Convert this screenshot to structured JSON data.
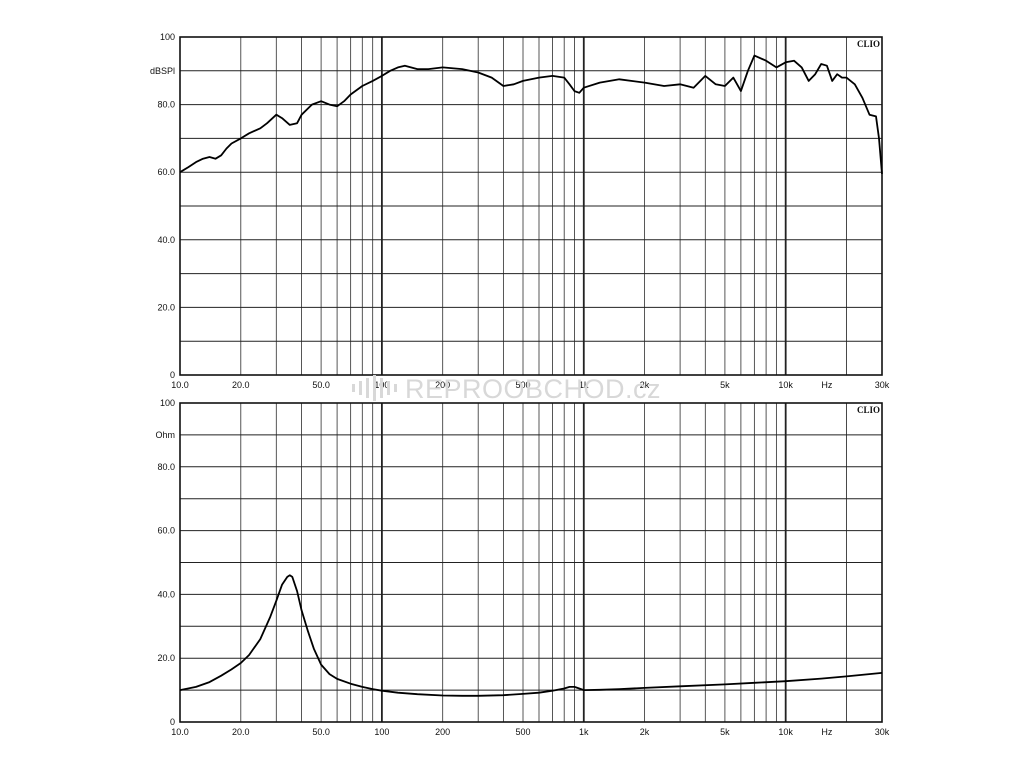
{
  "watermark": "REPROOBCHOD.cz",
  "colors": {
    "axis": "#111111",
    "grid_major": "#222222",
    "grid_minor": "#444444",
    "curve": "#000000",
    "watermark": "#d8d8d8"
  },
  "chart_data": [
    {
      "type": "line",
      "brand": "CLIO",
      "ylabel": "dBSPl",
      "xlabel": "Hz",
      "x_scale": "log",
      "xlim": [
        10,
        30000
      ],
      "ylim": [
        0,
        100
      ],
      "grid": true,
      "y_ticks": [
        {
          "value": 100,
          "label": "100"
        },
        {
          "value": 80,
          "label": "80.0"
        },
        {
          "value": 60,
          "label": "60.0"
        },
        {
          "value": 40,
          "label": "40.0"
        },
        {
          "value": 20,
          "label": "20.0"
        },
        {
          "value": 0,
          "label": "0"
        }
      ],
      "x_ticks": [
        {
          "value": 10,
          "label": "10.0"
        },
        {
          "value": 20,
          "label": "20.0"
        },
        {
          "value": 50,
          "label": "50.0"
        },
        {
          "value": 100,
          "label": "100"
        },
        {
          "value": 200,
          "label": "200"
        },
        {
          "value": 500,
          "label": "500"
        },
        {
          "value": 1000,
          "label": "1k"
        },
        {
          "value": 2000,
          "label": "2k"
        },
        {
          "value": 5000,
          "label": "5k"
        },
        {
          "value": 10000,
          "label": "10k"
        },
        {
          "value": 30000,
          "label": "30k"
        }
      ],
      "series": [
        {
          "x": [
            10,
            11,
            12,
            13,
            14,
            15,
            16,
            17,
            18,
            20,
            22,
            25,
            27,
            30,
            32,
            35,
            38,
            40,
            45,
            50,
            55,
            60,
            65,
            70,
            80,
            90,
            100,
            110,
            120,
            130,
            150,
            170,
            200,
            250,
            300,
            350,
            400,
            450,
            500,
            600,
            700,
            800,
            850,
            900,
            950,
            1000,
            1200,
            1500,
            2000,
            2500,
            3000,
            3500,
            4000,
            4500,
            5000,
            5500,
            6000,
            6500,
            7000,
            8000,
            9000,
            10000,
            11000,
            12000,
            13000,
            14000,
            15000,
            16000,
            17000,
            18000,
            19000,
            20000,
            22000,
            24000,
            26000,
            28000,
            29000,
            30000
          ],
          "y": [
            60,
            61.5,
            63,
            64,
            64.5,
            64,
            65,
            67,
            68.5,
            70,
            71.5,
            73,
            74.5,
            77,
            76,
            74,
            74.5,
            77,
            80,
            81,
            80,
            79.5,
            81,
            83,
            85.5,
            87,
            88.5,
            90,
            91,
            91.5,
            90.5,
            90.5,
            91,
            90.5,
            89.5,
            88,
            85.5,
            86,
            87,
            88,
            88.5,
            88,
            86,
            84,
            83.5,
            85,
            86.5,
            87.5,
            86.5,
            85.5,
            86,
            85,
            88.5,
            86,
            85.5,
            88,
            84,
            90,
            94.5,
            93,
            91,
            92.5,
            93,
            91,
            87,
            89,
            92,
            91.5,
            87,
            89,
            88,
            88,
            86,
            82,
            77,
            76.5,
            70,
            59.5
          ]
        }
      ]
    },
    {
      "type": "line",
      "brand": "CLIO",
      "ylabel": "Ohm",
      "xlabel": "Hz",
      "x_scale": "log",
      "xlim": [
        10,
        30000
      ],
      "ylim": [
        0,
        100
      ],
      "grid": true,
      "y_ticks": [
        {
          "value": 100,
          "label": "100"
        },
        {
          "value": 80,
          "label": "80.0"
        },
        {
          "value": 60,
          "label": "60.0"
        },
        {
          "value": 40,
          "label": "40.0"
        },
        {
          "value": 20,
          "label": "20.0"
        },
        {
          "value": 0,
          "label": "0"
        }
      ],
      "x_ticks": [
        {
          "value": 10,
          "label": "10.0"
        },
        {
          "value": 20,
          "label": "20.0"
        },
        {
          "value": 50,
          "label": "50.0"
        },
        {
          "value": 100,
          "label": "100"
        },
        {
          "value": 200,
          "label": "200"
        },
        {
          "value": 500,
          "label": "500"
        },
        {
          "value": 1000,
          "label": "1k"
        },
        {
          "value": 2000,
          "label": "2k"
        },
        {
          "value": 5000,
          "label": "5k"
        },
        {
          "value": 10000,
          "label": "10k"
        },
        {
          "value": 30000,
          "label": "30k"
        }
      ],
      "series": [
        {
          "x": [
            10,
            12,
            14,
            16,
            18,
            20,
            22,
            25,
            28,
            30,
            32,
            34,
            35,
            36,
            38,
            40,
            43,
            46,
            50,
            55,
            60,
            70,
            80,
            90,
            100,
            120,
            150,
            200,
            250,
            300,
            400,
            500,
            600,
            700,
            800,
            850,
            900,
            950,
            1000,
            1200,
            1500,
            2000,
            3000,
            5000,
            7000,
            10000,
            15000,
            20000,
            30000
          ],
          "y": [
            10,
            11,
            12.5,
            14.5,
            16.5,
            18.5,
            21,
            26,
            33,
            38,
            43,
            45.5,
            46,
            45.5,
            41,
            35,
            28.5,
            23,
            18,
            15,
            13.5,
            12,
            11,
            10.3,
            9.8,
            9.2,
            8.7,
            8.3,
            8.2,
            8.2,
            8.4,
            8.8,
            9.2,
            9.8,
            10.5,
            11,
            11,
            10.5,
            10,
            10.1,
            10.3,
            10.7,
            11.2,
            11.8,
            12.3,
            12.8,
            13.6,
            14.3,
            15.4
          ]
        }
      ]
    }
  ]
}
